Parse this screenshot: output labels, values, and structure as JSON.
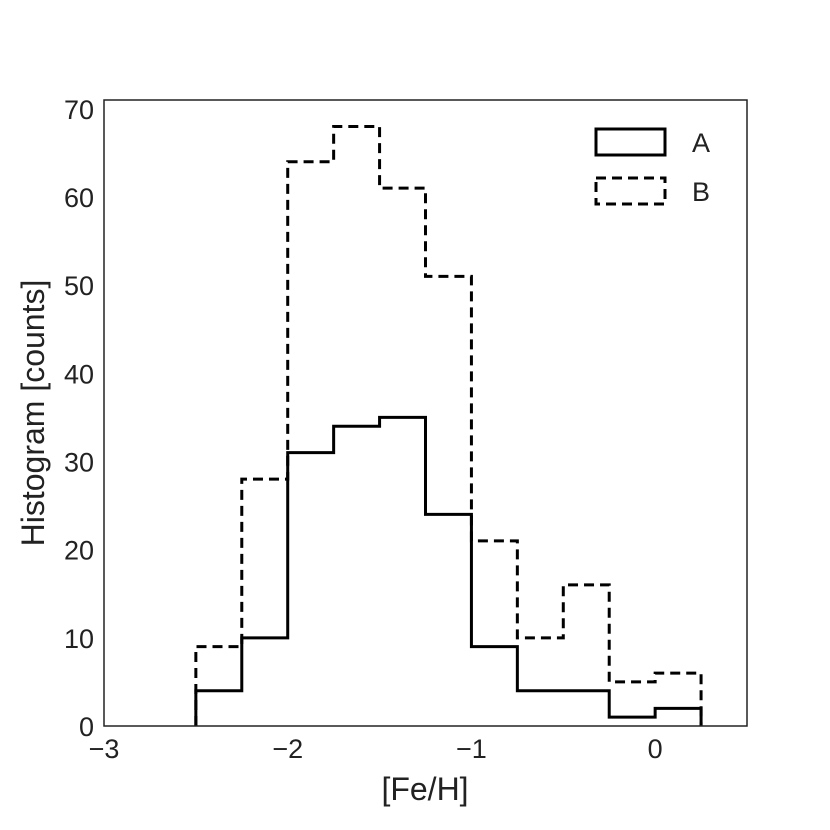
{
  "chart_data": {
    "type": "histogram",
    "xlabel": "[Fe/H]",
    "ylabel": "Histogram [counts]",
    "xlim": [
      -3,
      0.5
    ],
    "ylim": [
      0,
      71
    ],
    "xticks": [
      -3,
      -2,
      -1,
      0
    ],
    "xtick_labels": [
      "−3",
      "−2",
      "−1",
      "0"
    ],
    "yticks": [
      0,
      10,
      20,
      30,
      40,
      50,
      60,
      70
    ],
    "ytick_labels": [
      "0",
      "10",
      "20",
      "30",
      "40",
      "50",
      "60",
      "70"
    ],
    "bin_edges": [
      -2.5,
      -2.25,
      -2.0,
      -1.75,
      -1.5,
      -1.25,
      -1.0,
      -0.75,
      -0.5,
      -0.25,
      0.0,
      0.25
    ],
    "grid": false,
    "legend_position": "top-right",
    "series": [
      {
        "name": "A",
        "line_style": "solid",
        "color": "#000000",
        "counts": [
          4,
          10,
          31,
          34,
          35,
          24,
          9,
          4,
          4,
          1,
          2
        ]
      },
      {
        "name": "B",
        "line_style": "dashed",
        "color": "#000000",
        "counts": [
          9,
          28,
          64,
          68,
          61,
          51,
          21,
          10,
          16,
          5,
          6
        ]
      }
    ]
  }
}
